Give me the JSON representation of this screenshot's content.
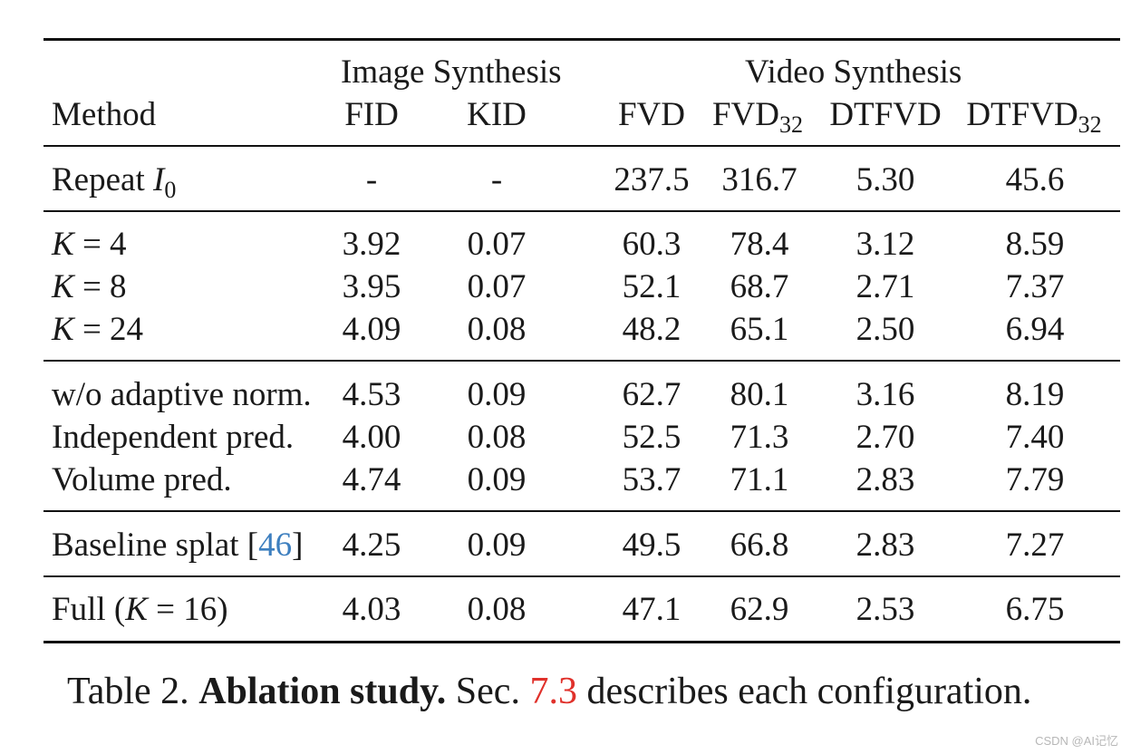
{
  "header": {
    "group_image": "Image Synthesis",
    "group_video": "Video Synthesis",
    "method": "Method",
    "fid": "FID",
    "kid": "KID",
    "fvd": "FVD",
    "fvd32_base": "FVD",
    "fvd32_sub": "32",
    "dtfvd": "DTFVD",
    "dtfvd32_base": "DTFVD",
    "dtfvd32_sub": "32"
  },
  "rows": [
    {
      "method_text": "Repeat ",
      "method_var": "I",
      "method_sub": "0",
      "fid": "-",
      "kid": "-",
      "fvd": "237.5",
      "fvd32": "316.7",
      "dtfvd": "5.30",
      "dtfvd32": "45.6"
    },
    {
      "method_var": "K",
      "method_eq": " = 4",
      "fid": "3.92",
      "kid": "0.07",
      "fvd": "60.3",
      "fvd32": "78.4",
      "dtfvd": "3.12",
      "dtfvd32": "8.59"
    },
    {
      "method_var": "K",
      "method_eq": " = 8",
      "fid": "3.95",
      "kid": "0.07",
      "fvd": "52.1",
      "fvd32": "68.7",
      "dtfvd": "2.71",
      "dtfvd32": "7.37"
    },
    {
      "method_var": "K",
      "method_eq": " = 24",
      "fid": "4.09",
      "kid": "0.08",
      "fvd": "48.2",
      "fvd32": "65.1",
      "dtfvd": "2.50",
      "dtfvd32": "6.94"
    },
    {
      "method_text": "w/o adaptive norm.",
      "fid": "4.53",
      "kid": "0.09",
      "fvd": "62.7",
      "fvd32": "80.1",
      "dtfvd": "3.16",
      "dtfvd32": "8.19"
    },
    {
      "method_text": "Independent pred.",
      "fid": "4.00",
      "kid": "0.08",
      "fvd": "52.5",
      "fvd32": "71.3",
      "dtfvd": "2.70",
      "dtfvd32": "7.40"
    },
    {
      "method_text": "Volume pred.",
      "fid": "4.74",
      "kid": "0.09",
      "fvd": "53.7",
      "fvd32": "71.1",
      "dtfvd": "2.83",
      "dtfvd32": "7.79"
    },
    {
      "method_text": "Baseline splat [",
      "method_ref": "46",
      "method_tail": "]",
      "fid": "4.25",
      "kid": "0.09",
      "fvd": "49.5",
      "fvd32": "66.8",
      "dtfvd": "2.83",
      "dtfvd32": "7.27"
    },
    {
      "method_text": "Full (",
      "method_var": "K",
      "method_eq": " = 16",
      "method_tail": ")",
      "fid": "4.03",
      "kid": "0.08",
      "fvd": "47.1",
      "fvd32": "62.9",
      "dtfvd": "2.53",
      "dtfvd32": "6.75"
    }
  ],
  "caption": {
    "prefix": "Table 2. ",
    "bold": "Ablation study.",
    "mid": " Sec. ",
    "ref": "7.3",
    "suffix": " describes each configuration."
  },
  "watermark": "CSDN @AI记忆",
  "colors": {
    "link_blue": "#3d7fbf",
    "link_red": "#e0312b",
    "text": "#1a1a1a"
  }
}
